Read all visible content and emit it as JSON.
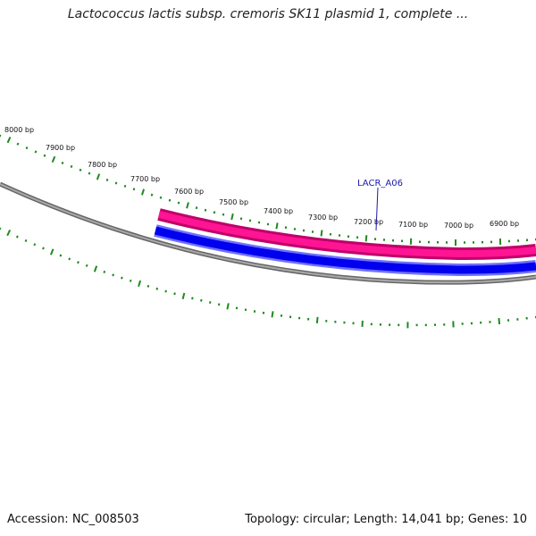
{
  "title": "Lactococcus lactis subsp. cremoris SK11 plasmid 1, complete ...",
  "footer": {
    "accession": "Accession: NC_008503",
    "stats": "Topology: circular; Length: 14,041 bp; Genes: 10"
  },
  "tick_labels": [
    {
      "bp": 8000,
      "label": "8000 bp"
    },
    {
      "bp": 7900,
      "label": "7900 bp"
    },
    {
      "bp": 7800,
      "label": "7800 bp"
    },
    {
      "bp": 7700,
      "label": "7700 bp"
    },
    {
      "bp": 7600,
      "label": "7600 bp"
    },
    {
      "bp": 7500,
      "label": "7500 bp"
    },
    {
      "bp": 7400,
      "label": "7400 bp"
    },
    {
      "bp": 7300,
      "label": "7300 bp"
    },
    {
      "bp": 7200,
      "label": "7200 bp"
    },
    {
      "bp": 7100,
      "label": "7100 bp"
    },
    {
      "bp": 7000,
      "label": "7000 bp"
    },
    {
      "bp": 6900,
      "label": "6900 bp"
    }
  ],
  "gene": {
    "label": "LACR_A06"
  },
  "colors": {
    "ticks": "#1f8a1f",
    "backbone": "#7a7a7a",
    "forward_feature": "#ff1493",
    "reverse_feature": "#0000ee",
    "gene_label": "#1a1aaa"
  }
}
